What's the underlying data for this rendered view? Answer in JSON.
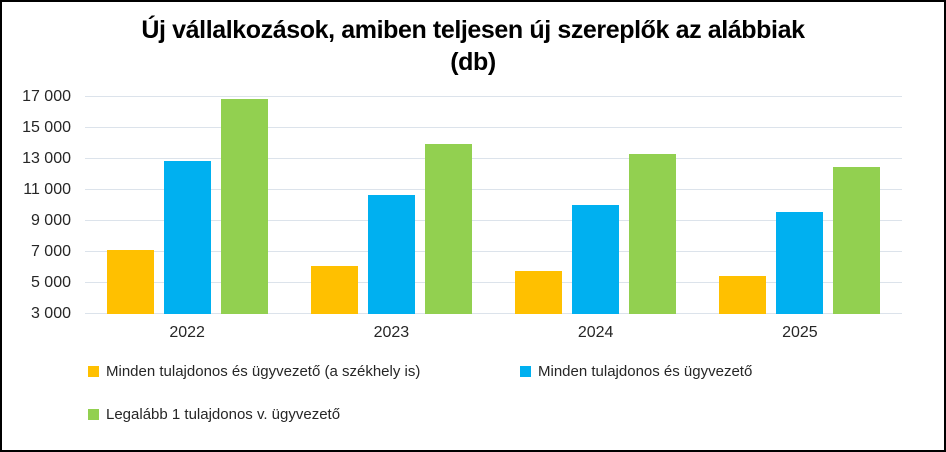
{
  "window": {
    "background": "#ffffff",
    "border_color": "#000000"
  },
  "chart_data": {
    "type": "bar",
    "title": "Új vállalkozások, amiben teljesen új szereplők az alábbiak (db)",
    "title_lines": [
      "Új vállalkozások, amiben teljesen új szereplők az alábbiak",
      "(db)"
    ],
    "categories": [
      "2022",
      "2023",
      "2024",
      "2025"
    ],
    "series": [
      {
        "name": "Minden tulajdonos és ügyvezető (a székhely is)",
        "color": "#FFC000",
        "values": [
          7150,
          6100,
          5800,
          5450
        ]
      },
      {
        "name": "Minden tulajdonos és ügyvezető",
        "color": "#00B0F0",
        "values": [
          12900,
          10650,
          10050,
          9550
        ]
      },
      {
        "name": "Legalább 1 tulajdonos v. ügyvezető",
        "color": "#92D050",
        "values": [
          16900,
          14000,
          13300,
          12500
        ]
      }
    ],
    "xlabel": "",
    "ylabel": "",
    "ylim": [
      3000,
      17000
    ],
    "y_ticks": [
      {
        "value": 3000,
        "label": "3 000"
      },
      {
        "value": 5000,
        "label": "5 000"
      },
      {
        "value": 7000,
        "label": "7 000"
      },
      {
        "value": 9000,
        "label": "9 000"
      },
      {
        "value": 11000,
        "label": "11 000"
      },
      {
        "value": 13000,
        "label": "13 000"
      },
      {
        "value": 15000,
        "label": "15 000"
      },
      {
        "value": 17000,
        "label": "17 000"
      }
    ],
    "grid": true,
    "gridline_color": "#DCE3EB",
    "text_color": "#262626",
    "legend_position": "bottom-left"
  }
}
